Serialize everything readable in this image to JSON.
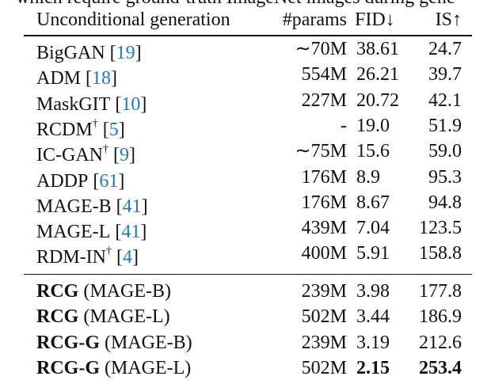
{
  "context_text": "which require ground-truth ImageNet images during gene",
  "header": {
    "method": "Unconditional generation",
    "params": "#params",
    "fid": "FID↓",
    "is": "IS↑"
  },
  "rows": [
    {
      "name": "BigGAN",
      "dagger": "",
      "ref": "19",
      "params": "∼70M",
      "fid": "38.61",
      "is": "24.7"
    },
    {
      "name": "ADM",
      "dagger": "",
      "ref": "18",
      "params": "554M",
      "fid": "26.21",
      "is": "39.7"
    },
    {
      "name": "MaskGIT",
      "dagger": "",
      "ref": "10",
      "params": "227M",
      "fid": "20.72",
      "is": "42.1"
    },
    {
      "name": "RCDM",
      "dagger": "†",
      "ref": "5",
      "params": "-",
      "fid": "19.0",
      "is": "51.9"
    },
    {
      "name": "IC-GAN",
      "dagger": "†",
      "ref": "9",
      "params": "∼75M",
      "fid": "15.6",
      "is": "59.0"
    },
    {
      "name": "ADDP",
      "dagger": "",
      "ref": "61",
      "params": "176M",
      "fid": "8.9",
      "is": "95.3"
    },
    {
      "name": "MAGE-B",
      "dagger": "",
      "ref": "41",
      "params": "176M",
      "fid": "8.67",
      "is": "94.8"
    },
    {
      "name": "MAGE-L",
      "dagger": "",
      "ref": "41",
      "params": "439M",
      "fid": "7.04",
      "is": "123.5"
    },
    {
      "name": "RDM-IN",
      "dagger": "†",
      "ref": "4",
      "params": "400M",
      "fid": "5.91",
      "is": "158.8"
    }
  ],
  "ours": [
    {
      "name": "RCG",
      "variant": "(MAGE-B)",
      "params": "239M",
      "fid": "3.98",
      "is": "177.8",
      "best": false
    },
    {
      "name": "RCG",
      "variant": "(MAGE-L)",
      "params": "502M",
      "fid": "3.44",
      "is": "186.9",
      "best": false
    },
    {
      "name": "RCG-G",
      "variant": "(MAGE-B)",
      "params": "239M",
      "fid": "3.19",
      "is": "212.6",
      "best": false
    },
    {
      "name": "RCG-G",
      "variant": "(MAGE-L)",
      "params": "502M",
      "fid": "2.15",
      "is": "253.4",
      "best": true
    }
  ]
}
